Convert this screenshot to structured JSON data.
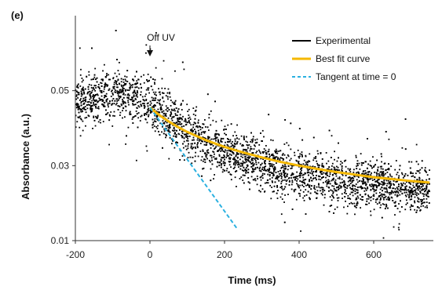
{
  "chart_data": {
    "type": "scatter",
    "panel_label": "(e)",
    "xlabel": "Time (ms)",
    "ylabel": "Absorbance (a.u.)",
    "xlim": [
      -200,
      760
    ],
    "ylim": [
      0.01,
      0.07
    ],
    "x_ticks": [
      -200,
      0,
      200,
      400,
      600
    ],
    "x_tick_labels": [
      "-200",
      "0",
      "200",
      "400",
      "600"
    ],
    "y_ticks": [
      0.01,
      0.03,
      0.05
    ],
    "y_tick_labels": [
      "0.01",
      "0.03",
      "0.05"
    ],
    "grid": false,
    "legend_position": "top-right",
    "annotation": {
      "text": "Off UV",
      "x": 0,
      "arrow": true
    },
    "series": [
      {
        "name": "Experimental",
        "style": "scatter",
        "color": "#000000",
        "description_points": [
          [
            -200,
            0.047
          ],
          [
            -150,
            0.048
          ],
          [
            -100,
            0.049
          ],
          [
            -50,
            0.049
          ],
          [
            0,
            0.047
          ],
          [
            50,
            0.043
          ],
          [
            100,
            0.039
          ],
          [
            150,
            0.036
          ],
          [
            200,
            0.034
          ],
          [
            250,
            0.032
          ],
          [
            300,
            0.0305
          ],
          [
            350,
            0.029
          ],
          [
            400,
            0.028
          ],
          [
            450,
            0.027
          ],
          [
            500,
            0.026
          ],
          [
            550,
            0.0255
          ],
          [
            600,
            0.025
          ],
          [
            650,
            0.0245
          ],
          [
            700,
            0.024
          ],
          [
            750,
            0.0235
          ]
        ],
        "scatter": 0.006
      },
      {
        "name": "Best fit curve",
        "style": "line",
        "color": "#f5b800",
        "x": [
          0,
          25,
          50,
          75,
          100,
          150,
          200,
          250,
          300,
          350,
          400,
          450,
          500,
          550,
          600,
          650,
          700,
          750
        ],
        "y": [
          0.0455,
          0.0435,
          0.0418,
          0.0403,
          0.039,
          0.0368,
          0.035,
          0.0335,
          0.0322,
          0.031,
          0.03,
          0.0291,
          0.0283,
          0.0276,
          0.0269,
          0.0264,
          0.0259,
          0.0255
        ]
      },
      {
        "name": "Tangent at time = 0",
        "style": "dashed-line",
        "color": "#2ab0e0",
        "x": [
          0,
          235
        ],
        "y": [
          0.0455,
          0.013
        ]
      }
    ]
  }
}
